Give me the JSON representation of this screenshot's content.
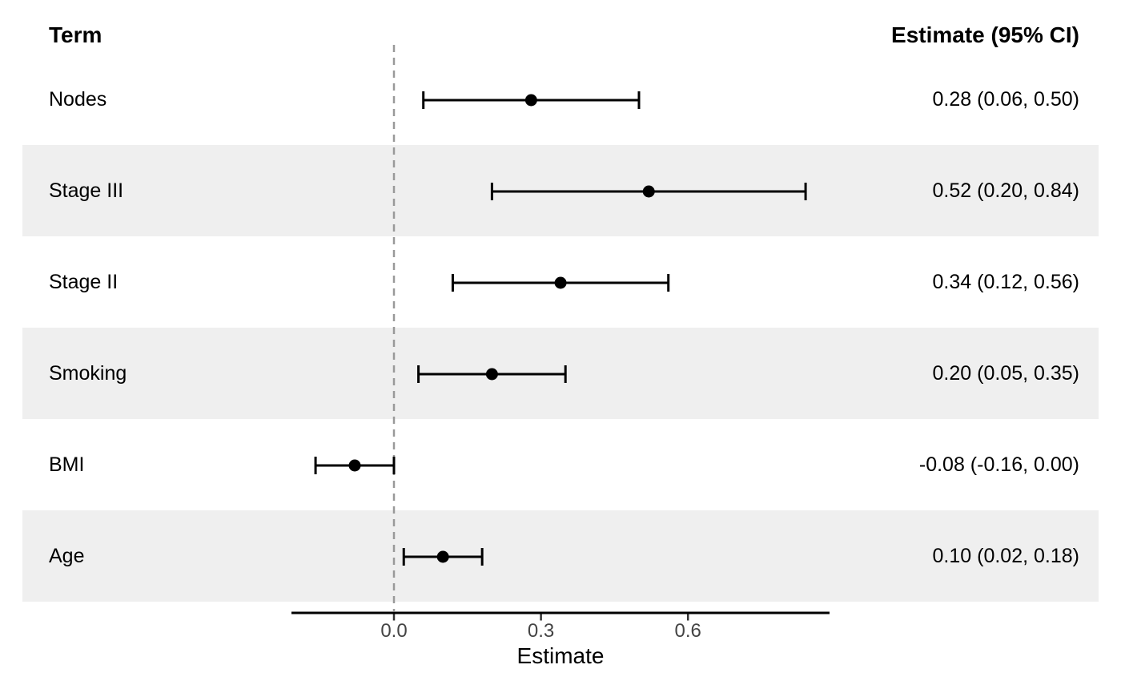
{
  "figure": {
    "header_term": "Term",
    "header_estimate": "Estimate (95% CI)",
    "colors": {
      "background": "#ffffff",
      "stripe": "#EFEFEF",
      "zero_line": "#999999",
      "marker": "#000000",
      "ci_line": "#000000",
      "axis_line": "#000000",
      "tick_mark": "#333333",
      "axis_text": "#444444"
    }
  },
  "chart_data": {
    "type": "forest",
    "title": "",
    "xlabel": "Estimate",
    "ylabel": "",
    "legend": "none",
    "grid": "off",
    "xlim": [
      -0.21,
      0.89
    ],
    "zero_line": 0.0,
    "x_ticks": [
      0.0,
      0.3,
      0.6
    ],
    "x_tick_labels": [
      "0.0",
      "0.3",
      "0.6"
    ],
    "rows": [
      {
        "term": "Nodes",
        "estimate": 0.28,
        "ci_low": 0.06,
        "ci_high": 0.5,
        "label": "0.28 (0.06, 0.50)",
        "striped": false
      },
      {
        "term": "Stage III",
        "estimate": 0.52,
        "ci_low": 0.2,
        "ci_high": 0.84,
        "label": "0.52 (0.20, 0.84)",
        "striped": true
      },
      {
        "term": "Stage II",
        "estimate": 0.34,
        "ci_low": 0.12,
        "ci_high": 0.56,
        "label": "0.34 (0.12, 0.56)",
        "striped": false
      },
      {
        "term": "Smoking",
        "estimate": 0.2,
        "ci_low": 0.05,
        "ci_high": 0.35,
        "label": "0.20 (0.05, 0.35)",
        "striped": true
      },
      {
        "term": "BMI",
        "estimate": -0.08,
        "ci_low": -0.16,
        "ci_high": 0.0,
        "label": "-0.08 (-0.16, 0.00)",
        "striped": false
      },
      {
        "term": "Age",
        "estimate": 0.1,
        "ci_low": 0.02,
        "ci_high": 0.18,
        "label": "0.10 (0.02, 0.18)",
        "striped": true
      }
    ]
  }
}
